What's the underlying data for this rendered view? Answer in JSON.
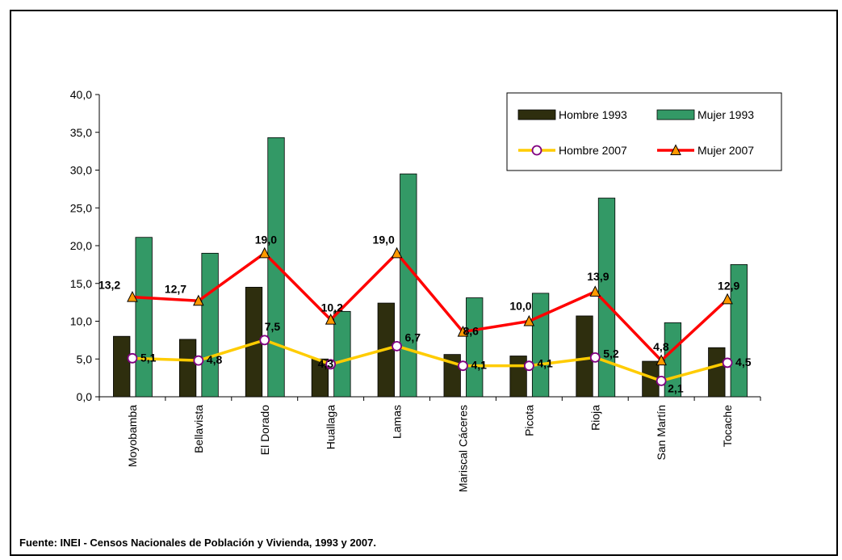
{
  "chart_data": {
    "type": "bar",
    "title": "",
    "xlabel": "",
    "ylabel": "",
    "categories": [
      "Moyobamba",
      "Bellavista",
      "El Dorado",
      "Huallaga",
      "Lamas",
      "Mariscal Cáceres",
      "Picota",
      "Rioja",
      "San Martín",
      "Tocache"
    ],
    "ylim": [
      0,
      40
    ],
    "yticks": [
      "0,0",
      "5,0",
      "10,0",
      "15,0",
      "20,0",
      "25,0",
      "30,0",
      "35,0",
      "40,0"
    ],
    "grid": false,
    "legend_position": "top-right",
    "series": [
      {
        "name": "Hombre 1993",
        "type": "bar",
        "color": "#2e2e0e",
        "values": [
          8.0,
          7.6,
          14.5,
          5.0,
          12.4,
          5.6,
          5.4,
          10.7,
          4.7,
          6.5
        ]
      },
      {
        "name": "Mujer 1993",
        "type": "bar",
        "color": "#339966",
        "values": [
          21.1,
          19.0,
          34.3,
          11.3,
          29.5,
          13.1,
          13.7,
          26.3,
          9.8,
          17.5
        ]
      },
      {
        "name": "Hombre 2007",
        "type": "line",
        "color": "#ffcc00",
        "marker": "circle",
        "marker_color": "#800080",
        "values": [
          5.1,
          4.8,
          7.5,
          4.3,
          6.7,
          4.1,
          4.1,
          5.2,
          2.1,
          4.5
        ],
        "labels": [
          "5,1",
          "4,8",
          "7,5",
          "4,3",
          "6,7",
          "4,1",
          "4,1",
          "5,2",
          "2,1",
          "4,5"
        ]
      },
      {
        "name": "Mujer 2007",
        "type": "line",
        "color": "#ff0000",
        "marker": "triangle",
        "marker_color": "#ff9900",
        "values": [
          13.2,
          12.7,
          19.0,
          10.2,
          19.0,
          8.6,
          10.0,
          13.9,
          4.8,
          12.9
        ],
        "labels": [
          "13,2",
          "12,7",
          "19,0",
          "10,2",
          "19,0",
          "8,6",
          "10,0",
          "13,9",
          "4,8",
          "12,9"
        ]
      }
    ]
  },
  "source": "Fuente: INEI - Censos Nacionales de Población y Vivienda, 1993 y 2007."
}
